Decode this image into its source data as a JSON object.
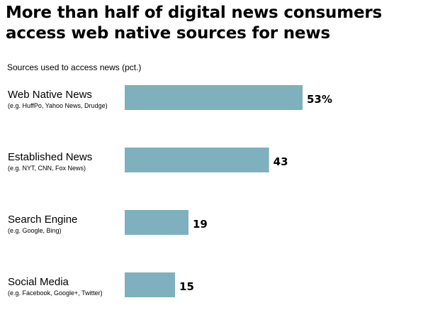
{
  "title": "More than half of digital news consumers access web native sources for news",
  "subtitle": "Sources used to access news (pct.)",
  "colors": {
    "bar": "#7fb0bd"
  },
  "chart_data": {
    "type": "bar",
    "orientation": "horizontal",
    "title": "More than half of digital news consumers access web native sources for news",
    "subtitle": "Sources used to access news (pct.)",
    "categories": [
      "Web Native News",
      "Established News",
      "Search Engine",
      "Social Media"
    ],
    "category_notes": [
      "(e.g. HuffPo, Yahoo News, Drudge)",
      "(e.g. NYT, CNN, Fox News)",
      "(e.g. Google, Bing)",
      "(e.g. Facebook, Google+, Twitter)"
    ],
    "values": [
      53,
      43,
      19,
      15
    ],
    "value_labels": [
      "53%",
      "43",
      "19",
      "15"
    ],
    "xlim": [
      0,
      55
    ],
    "grid": false,
    "legend": "none"
  }
}
